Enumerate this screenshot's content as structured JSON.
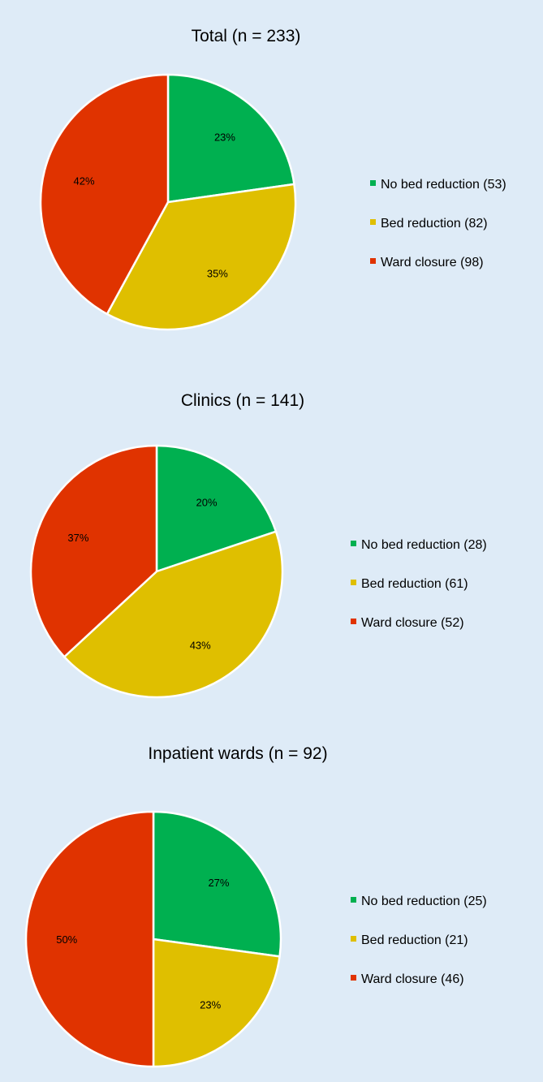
{
  "colors": {
    "background": "#deebf7",
    "no_bed_reduction": "#00b050",
    "bed_reduction": "#dfbf00",
    "ward_closure": "#e03300",
    "slice_border": "#ffffff"
  },
  "chart_data": [
    {
      "type": "pie",
      "title": "Total (n = 233)",
      "categories": [
        "No bed reduction (53)",
        "Bed reduction (82)",
        "Ward closure (98)"
      ],
      "values": [
        53,
        82,
        98
      ],
      "percent_labels": [
        "23%",
        "35%",
        "42%"
      ],
      "legend_position": "right"
    },
    {
      "type": "pie",
      "title": "Clinics (n = 141)",
      "categories": [
        "No bed reduction (28)",
        "Bed reduction (61)",
        "Ward closure (52)"
      ],
      "values": [
        28,
        61,
        52
      ],
      "percent_labels": [
        "20%",
        "43%",
        "37%"
      ],
      "legend_position": "right"
    },
    {
      "type": "pie",
      "title": "Inpatient wards (n = 92)",
      "categories": [
        "No bed reduction (25)",
        "Bed reduction (21)",
        "Ward closure (46)"
      ],
      "values": [
        25,
        21,
        46
      ],
      "percent_labels": [
        "27%",
        "23%",
        "50%"
      ],
      "legend_position": "right"
    }
  ]
}
